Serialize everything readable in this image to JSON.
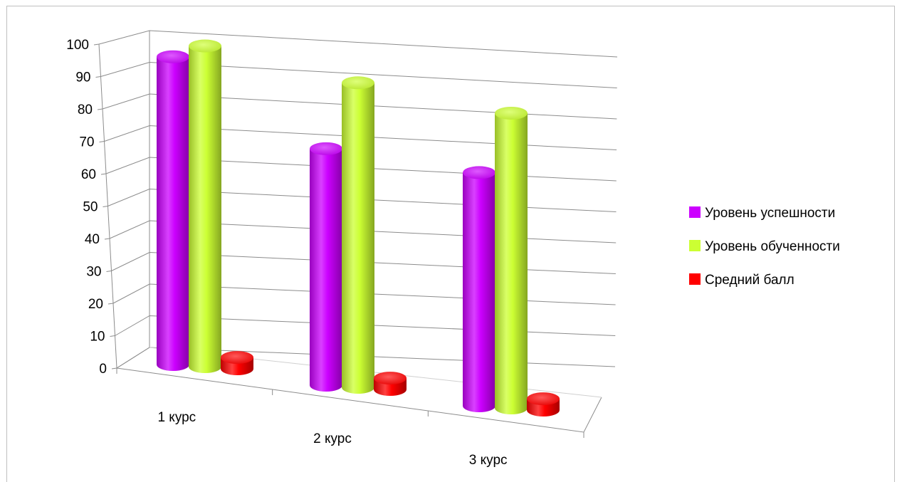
{
  "chart_data": {
    "type": "bar",
    "style": "3d-cylinder",
    "categories": [
      "1 курс",
      "2 курс",
      "3 курс"
    ],
    "series": [
      {
        "name": "Уровень успешности",
        "color": "#cc00ff",
        "values": [
          95,
          73,
          72
        ]
      },
      {
        "name": "Уровень обученности",
        "color": "#ccff33",
        "values": [
          99,
          94,
          91
        ]
      },
      {
        "name": "Средний балл",
        "color": "#ff0000",
        "values": [
          3.5,
          3.5,
          3.5
        ]
      }
    ],
    "yticks": [
      "0",
      "10",
      "20",
      "30",
      "40",
      "50",
      "60",
      "70",
      "80",
      "90",
      "100"
    ],
    "ylim": [
      0,
      100
    ],
    "grid": true,
    "legend": "right"
  }
}
